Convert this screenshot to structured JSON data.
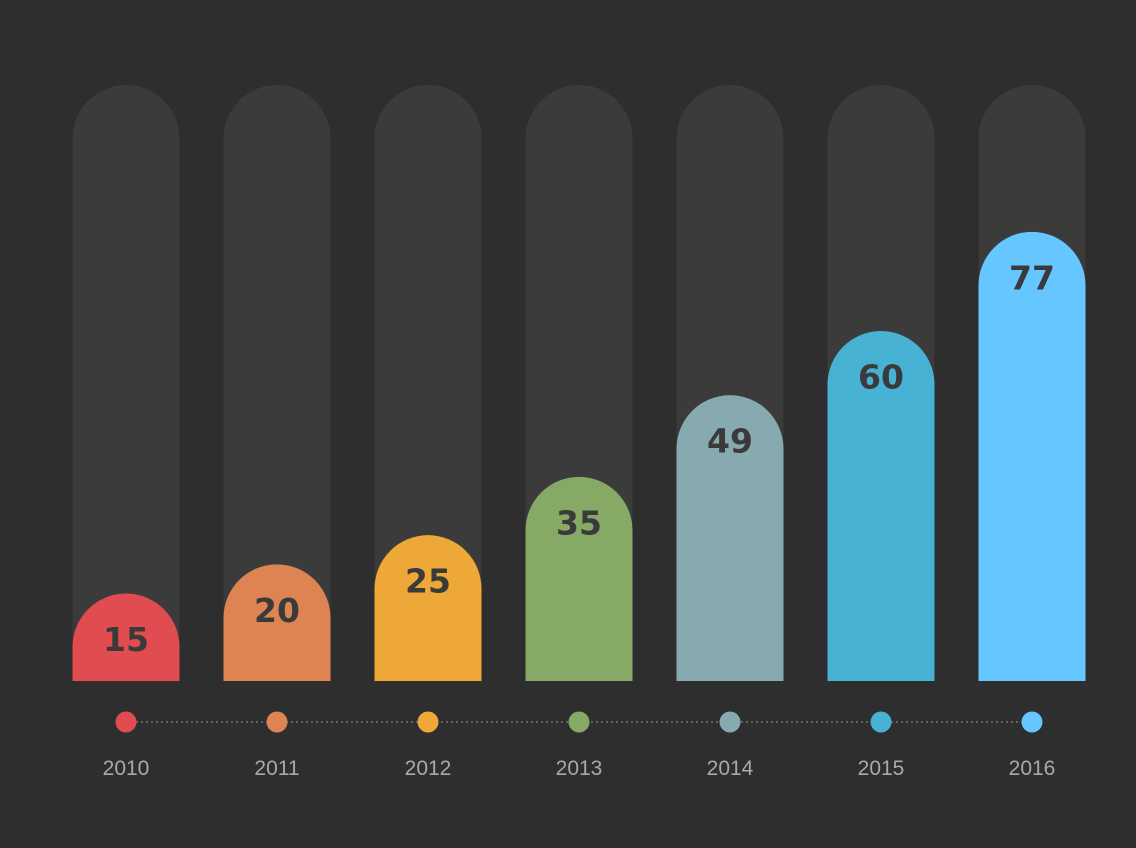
{
  "chart_data": {
    "type": "bar",
    "categories": [
      "2010",
      "2011",
      "2012",
      "2013",
      "2014",
      "2015",
      "2016"
    ],
    "values": [
      15,
      20,
      25,
      35,
      49,
      60,
      77
    ],
    "ylim": [
      0,
      96
    ],
    "colors": [
      "#e04c4f",
      "#dd8452",
      "#eda838",
      "#87a966",
      "#86aaaf",
      "#47b2d3",
      "#66c6ff"
    ],
    "track_color": "#3b3b3b",
    "background": "#2e2e2e",
    "timeline_line_color": "#777777",
    "grid": false,
    "legend": "none"
  }
}
